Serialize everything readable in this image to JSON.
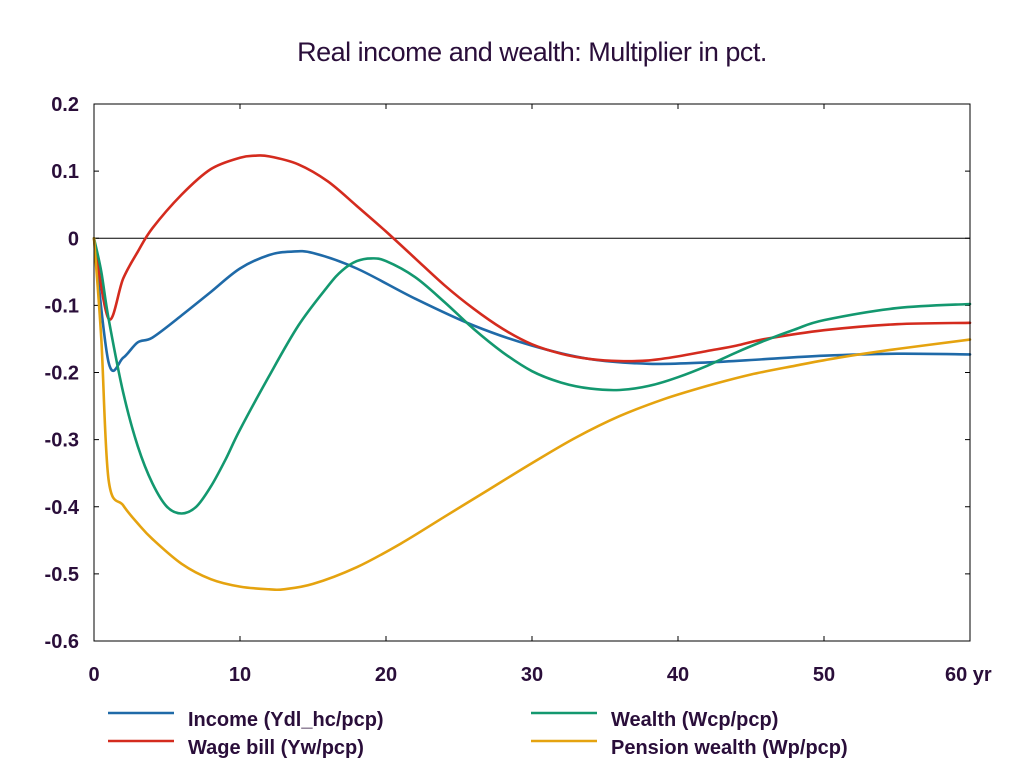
{
  "chart_data": {
    "type": "line",
    "title": "Real income and wealth: Multiplier in pct.",
    "xlabel": "",
    "ylabel": "",
    "xlim": [
      0,
      60
    ],
    "ylim": [
      -0.6,
      0.2
    ],
    "x_ticks": [
      0,
      10,
      20,
      30,
      40,
      50,
      60
    ],
    "x_tick_labels": [
      "0",
      "10",
      "20",
      "30",
      "40",
      "50",
      "60 yr"
    ],
    "y_ticks": [
      0.2,
      0.1,
      0,
      -0.1,
      -0.2,
      -0.3,
      -0.4,
      -0.5,
      -0.6
    ],
    "y_tick_labels": [
      "0.2",
      "0.1",
      "0",
      "-0.1",
      "-0.2",
      "-0.3",
      "-0.4",
      "-0.5",
      "-0.6"
    ],
    "grid": false,
    "legend_position": "bottom",
    "series": [
      {
        "name": "Income (Ydl_hc/pcp)",
        "color": "#1f6aa8",
        "x": [
          0,
          1,
          2,
          3,
          4,
          6,
          8,
          10,
          12,
          13.5,
          15,
          18,
          22,
          26,
          30,
          34,
          38,
          42,
          46,
          50,
          55,
          60
        ],
        "y": [
          0,
          -0.185,
          -0.178,
          -0.155,
          -0.148,
          -0.115,
          -0.08,
          -0.045,
          -0.025,
          -0.02,
          -0.022,
          -0.045,
          -0.09,
          -0.13,
          -0.16,
          -0.18,
          -0.187,
          -0.185,
          -0.18,
          -0.175,
          -0.172,
          -0.173
        ]
      },
      {
        "name": "Wage bill (Yw/pcp)",
        "color": "#d42b1e",
        "x": [
          0,
          1,
          2,
          3,
          4,
          6,
          8,
          10,
          11,
          12,
          14,
          16,
          18,
          20,
          22,
          24,
          26,
          28,
          30,
          32,
          34,
          36,
          38,
          40,
          42,
          44,
          46,
          50,
          55,
          60
        ],
        "y": [
          0,
          -0.12,
          -0.06,
          -0.02,
          0.015,
          0.065,
          0.103,
          0.12,
          0.123,
          0.122,
          0.11,
          0.085,
          0.048,
          0.01,
          -0.03,
          -0.07,
          -0.105,
          -0.135,
          -0.158,
          -0.172,
          -0.18,
          -0.183,
          -0.182,
          -0.176,
          -0.168,
          -0.16,
          -0.15,
          -0.137,
          -0.128,
          -0.126
        ]
      },
      {
        "name": "Wealth (Wcp/pcp)",
        "color": "#13986f",
        "x": [
          0,
          0.5,
          1,
          2,
          3,
          4,
          5,
          6,
          7,
          8,
          9,
          10,
          12,
          14,
          16,
          17,
          18,
          19,
          20,
          22,
          24,
          26,
          28,
          30,
          32,
          34,
          36,
          38,
          40,
          42,
          44,
          46,
          48,
          50,
          55,
          60
        ],
        "y": [
          0,
          -0.05,
          -0.12,
          -0.23,
          -0.31,
          -0.365,
          -0.4,
          -0.41,
          -0.4,
          -0.37,
          -0.33,
          -0.285,
          -0.205,
          -0.13,
          -0.072,
          -0.048,
          -0.034,
          -0.03,
          -0.034,
          -0.058,
          -0.095,
          -0.135,
          -0.17,
          -0.198,
          -0.215,
          -0.224,
          -0.226,
          -0.22,
          -0.207,
          -0.19,
          -0.17,
          -0.152,
          -0.136,
          -0.122,
          -0.104,
          -0.098
        ]
      },
      {
        "name": "Pension wealth (Wp/pcp)",
        "color": "#e5a30f",
        "x": [
          0,
          0.5,
          1,
          2,
          3,
          4,
          6,
          8,
          10,
          12,
          13,
          15,
          18,
          21,
          24,
          27,
          30,
          33,
          36,
          39,
          42,
          45,
          48,
          51,
          55,
          60
        ],
        "y": [
          0,
          -0.15,
          -0.36,
          -0.398,
          -0.425,
          -0.448,
          -0.485,
          -0.508,
          -0.519,
          -0.523,
          -0.523,
          -0.515,
          -0.49,
          -0.455,
          -0.415,
          -0.375,
          -0.335,
          -0.297,
          -0.265,
          -0.24,
          -0.22,
          -0.203,
          -0.19,
          -0.178,
          -0.165,
          -0.151
        ]
      }
    ]
  }
}
